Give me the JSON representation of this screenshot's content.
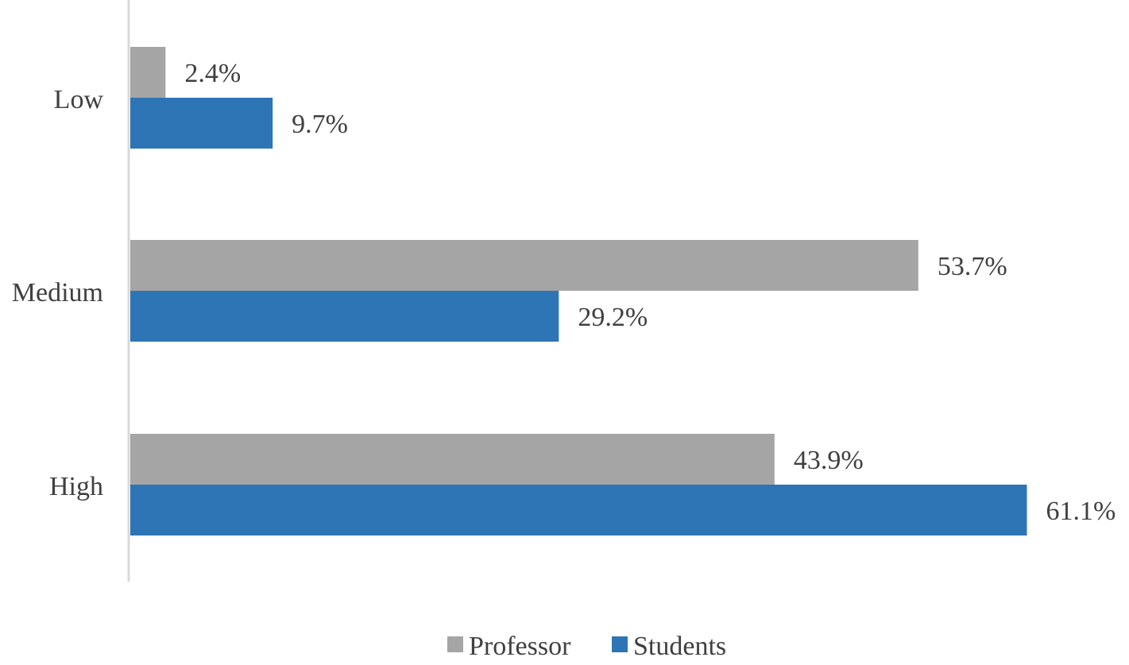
{
  "chart_data": {
    "type": "bar",
    "orientation": "horizontal",
    "categories": [
      "Low",
      "Medium",
      "High"
    ],
    "series": [
      {
        "name": "Professor",
        "values": [
          2.4,
          53.7,
          43.9
        ],
        "labels": [
          "2.4%",
          "53.7%",
          "43.9%"
        ],
        "color": "#a5a5a5"
      },
      {
        "name": "Students",
        "values": [
          9.7,
          29.2,
          61.1
        ],
        "labels": [
          "9.7%",
          "29.2%",
          "61.1%"
        ],
        "color": "#2e75b6"
      }
    ],
    "title": "",
    "xlabel": "",
    "ylabel": "",
    "xlim": [
      0,
      65
    ],
    "grid": false,
    "legend": "bottom",
    "axis_color": "#d9d9d9",
    "text_color": "#404040"
  }
}
